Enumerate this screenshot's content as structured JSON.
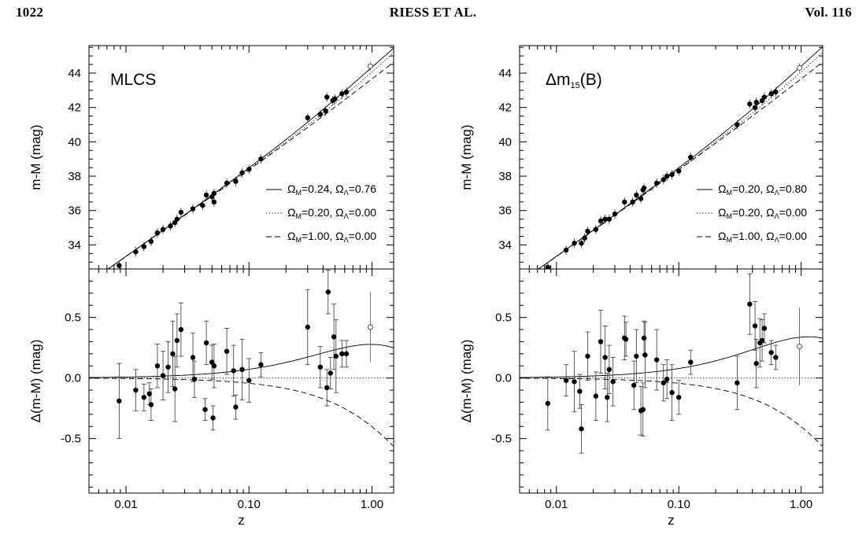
{
  "header": {
    "page_number": "1022",
    "running_title": "RIESS ET AL.",
    "volume": "Vol. 116"
  },
  "chart_data": [
    {
      "type": "scatter",
      "panel": "top-left",
      "label": "MLCS",
      "ylabel": "m-M (mag)",
      "xlabel": "",
      "xscale": "log",
      "xlim": [
        0.005,
        1.5
      ],
      "ylim": [
        32.6,
        45.6
      ],
      "yticks": [
        34,
        36,
        38,
        40,
        42,
        44
      ],
      "legend_position": "right",
      "series": [
        {
          "name": "Ω_M=0.24, Ω_Λ=0.76",
          "style": "solid",
          "om": 0.24,
          "ol": 0.76
        },
        {
          "name": "Ω_M=0.20, Ω_Λ=0.00",
          "style": "dotted",
          "om": 0.2,
          "ol": 0.0
        },
        {
          "name": "Ω_M=1.00, Ω_Λ=0.00",
          "style": "dashed",
          "om": 1.0,
          "ol": 0.0
        }
      ],
      "points": [
        [
          0.0088,
          32.8
        ],
        [
          0.012,
          33.6
        ],
        [
          0.014,
          33.9
        ],
        [
          0.016,
          34.2
        ],
        [
          0.018,
          34.7
        ],
        [
          0.02,
          34.9
        ],
        [
          0.023,
          35.1
        ],
        [
          0.025,
          35.3
        ],
        [
          0.026,
          35.5
        ],
        [
          0.028,
          35.9
        ],
        [
          0.035,
          36.1
        ],
        [
          0.042,
          36.3
        ],
        [
          0.045,
          36.9
        ],
        [
          0.05,
          36.8
        ],
        [
          0.052,
          37.0
        ],
        [
          0.052,
          36.5
        ],
        [
          0.066,
          37.6
        ],
        [
          0.078,
          37.7
        ],
        [
          0.088,
          38.2
        ],
        [
          0.1,
          38.4
        ],
        [
          0.125,
          39.0
        ],
        [
          0.3,
          41.4
        ],
        [
          0.38,
          41.6
        ],
        [
          0.42,
          41.8
        ],
        [
          0.43,
          42.6
        ],
        [
          0.48,
          42.4
        ],
        [
          0.5,
          42.5
        ],
        [
          0.57,
          42.8
        ],
        [
          0.62,
          42.9
        ]
      ],
      "open_points": [
        [
          0.97,
          44.4
        ]
      ]
    },
    {
      "type": "scatter",
      "panel": "bottom-left",
      "ylabel": "Δ(m-M) (mag)",
      "xlabel": "z",
      "xscale": "log",
      "xlim": [
        0.005,
        1.5
      ],
      "ylim": [
        -0.95,
        0.9
      ],
      "yticks": [
        -0.5,
        0.0,
        0.5
      ],
      "xticks": [
        "0.01",
        "0.10",
        "1.00"
      ],
      "points": [
        [
          0.0088,
          -0.19,
          0.31
        ],
        [
          0.012,
          -0.1,
          0.17
        ],
        [
          0.014,
          -0.16,
          0.11
        ],
        [
          0.0155,
          -0.13,
          0.09
        ],
        [
          0.016,
          -0.22,
          0.13
        ],
        [
          0.018,
          0.1,
          0.18
        ],
        [
          0.02,
          0.02,
          0.2
        ],
        [
          0.022,
          0.09,
          0.21
        ],
        [
          0.024,
          0.2,
          0.27
        ],
        [
          0.025,
          -0.09,
          0.27
        ],
        [
          0.026,
          0.31,
          0.22
        ],
        [
          0.028,
          0.4,
          0.22
        ],
        [
          0.035,
          0.17,
          0.2
        ],
        [
          0.036,
          -0.01,
          0.15
        ],
        [
          0.044,
          -0.26,
          0.09
        ],
        [
          0.045,
          0.29,
          0.18
        ],
        [
          0.05,
          0.13,
          0.14
        ],
        [
          0.051,
          -0.33,
          0.1
        ],
        [
          0.052,
          0.1,
          0.18
        ],
        [
          0.066,
          0.22,
          0.19
        ],
        [
          0.075,
          0.06,
          0.21
        ],
        [
          0.078,
          -0.24,
          0.1
        ],
        [
          0.088,
          0.07,
          0.25
        ],
        [
          0.1,
          -0.02,
          0.18
        ],
        [
          0.125,
          0.11,
          0.1
        ],
        [
          0.3,
          0.42,
          0.31
        ],
        [
          0.38,
          0.09,
          0.17
        ],
        [
          0.43,
          -0.08,
          0.15
        ],
        [
          0.44,
          0.71,
          0.18
        ],
        [
          0.46,
          0.04,
          0.13
        ],
        [
          0.49,
          0.34,
          0.27
        ],
        [
          0.51,
          0.18,
          0.3
        ],
        [
          0.57,
          0.2,
          0.11
        ],
        [
          0.62,
          0.2,
          0.11
        ]
      ],
      "open_points": [
        [
          0.97,
          0.42,
          0.29
        ]
      ]
    },
    {
      "type": "scatter",
      "panel": "top-right",
      "label": "Δm15(B)",
      "ylabel": "m-M (mag)",
      "xlabel": "",
      "xscale": "log",
      "xlim": [
        0.005,
        1.5
      ],
      "ylim": [
        32.6,
        45.6
      ],
      "yticks": [
        34,
        36,
        38,
        40,
        42,
        44
      ],
      "legend_position": "right",
      "series": [
        {
          "name": "Ω_M=0.20, Ω_Λ=0.80",
          "style": "solid",
          "om": 0.2,
          "ol": 0.8
        },
        {
          "name": "Ω_M=0.20, Ω_Λ=0.00",
          "style": "dotted",
          "om": 0.2,
          "ol": 0.0
        },
        {
          "name": "Ω_M=1.00, Ω_Λ=0.00",
          "style": "dashed",
          "om": 1.0,
          "ol": 0.0
        }
      ],
      "points": [
        [
          0.0085,
          32.7
        ],
        [
          0.012,
          33.7
        ],
        [
          0.014,
          34.1
        ],
        [
          0.016,
          34.1
        ],
        [
          0.017,
          34.4
        ],
        [
          0.018,
          34.8
        ],
        [
          0.021,
          34.9
        ],
        [
          0.023,
          35.4
        ],
        [
          0.025,
          35.5
        ],
        [
          0.027,
          35.5
        ],
        [
          0.03,
          35.8
        ],
        [
          0.036,
          36.5
        ],
        [
          0.042,
          36.5
        ],
        [
          0.045,
          36.9
        ],
        [
          0.049,
          36.7
        ],
        [
          0.051,
          37.2
        ],
        [
          0.052,
          37.3
        ],
        [
          0.066,
          37.6
        ],
        [
          0.075,
          37.8
        ],
        [
          0.08,
          38.0
        ],
        [
          0.088,
          38.1
        ],
        [
          0.1,
          38.3
        ],
        [
          0.125,
          39.1
        ],
        [
          0.3,
          41.0
        ],
        [
          0.38,
          42.2
        ],
        [
          0.42,
          42.0
        ],
        [
          0.43,
          42.3
        ],
        [
          0.48,
          42.4
        ],
        [
          0.5,
          42.6
        ],
        [
          0.57,
          42.8
        ],
        [
          0.62,
          42.9
        ]
      ],
      "open_points": [
        [
          0.97,
          44.3
        ]
      ]
    },
    {
      "type": "scatter",
      "panel": "bottom-right",
      "ylabel": "Δ(m-M) (mag)",
      "xlabel": "z",
      "xscale": "log",
      "xlim": [
        0.005,
        1.5
      ],
      "ylim": [
        -0.95,
        0.9
      ],
      "yticks": [
        -0.5,
        0.0,
        0.5
      ],
      "xticks": [
        "0.01",
        "0.10",
        "1.00"
      ],
      "points": [
        [
          0.0085,
          -0.21,
          0.22
        ],
        [
          0.012,
          -0.02,
          0.13
        ],
        [
          0.014,
          -0.03,
          0.25
        ],
        [
          0.0155,
          -0.11,
          0.14
        ],
        [
          0.016,
          -0.42,
          0.2
        ],
        [
          0.018,
          0.18,
          0.2
        ],
        [
          0.021,
          -0.15,
          0.2
        ],
        [
          0.023,
          0.3,
          0.26
        ],
        [
          0.025,
          0.17,
          0.26
        ],
        [
          0.026,
          -0.16,
          0.2
        ],
        [
          0.027,
          0.07,
          0.2
        ],
        [
          0.029,
          -0.03,
          0.2
        ],
        [
          0.036,
          0.33,
          0.18
        ],
        [
          0.037,
          0.32,
          0.14
        ],
        [
          0.043,
          -0.06,
          0.2
        ],
        [
          0.045,
          0.18,
          0.22
        ],
        [
          0.049,
          -0.27,
          0.2
        ],
        [
          0.051,
          -0.26,
          0.22
        ],
        [
          0.052,
          0.33,
          0.14
        ],
        [
          0.053,
          0.19,
          0.27
        ],
        [
          0.066,
          0.15,
          0.25
        ],
        [
          0.075,
          -0.04,
          0.15
        ],
        [
          0.08,
          -0.01,
          0.16
        ],
        [
          0.088,
          -0.12,
          0.23
        ],
        [
          0.1,
          -0.16,
          0.14
        ],
        [
          0.125,
          0.13,
          0.1
        ],
        [
          0.3,
          -0.04,
          0.22
        ],
        [
          0.38,
          0.61,
          0.25
        ],
        [
          0.42,
          0.43,
          0.2
        ],
        [
          0.43,
          0.12,
          0.2
        ],
        [
          0.46,
          0.29,
          0.2
        ],
        [
          0.48,
          0.31,
          0.17
        ],
        [
          0.5,
          0.41,
          0.12
        ],
        [
          0.57,
          0.21,
          0.1
        ],
        [
          0.62,
          0.17,
          0.1
        ]
      ],
      "open_points": [
        [
          0.97,
          0.26,
          0.32
        ]
      ]
    }
  ]
}
